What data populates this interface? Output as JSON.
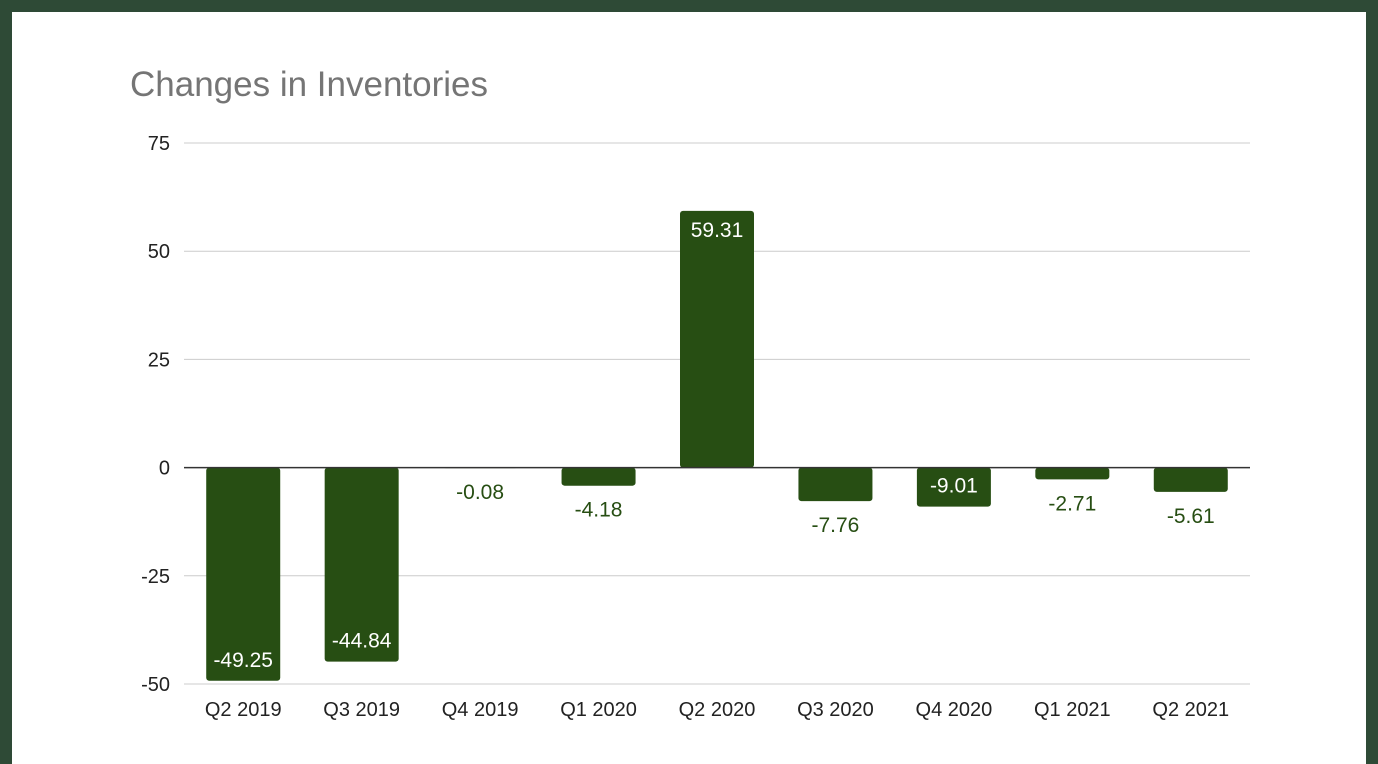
{
  "chart_data": {
    "type": "bar",
    "title": "Changes in Inventories",
    "xlabel": "",
    "ylabel": "",
    "categories": [
      "Q2 2019",
      "Q3 2019",
      "Q4 2019",
      "Q1 2020",
      "Q2 2020",
      "Q3 2020",
      "Q4 2020",
      "Q1 2021",
      "Q2 2021"
    ],
    "values": [
      -49.25,
      -44.84,
      -0.08,
      -4.18,
      59.31,
      -7.76,
      -9.01,
      -2.71,
      -5.61
    ],
    "data_labels": [
      "-49.25",
      "-44.84",
      "-0.08",
      "-4.18",
      "59.31",
      "-7.76",
      "-9.01",
      "-2.71",
      "-5.61"
    ],
    "ylim": [
      -50,
      75
    ],
    "yticks": [
      -50,
      -25,
      0,
      25,
      50,
      75
    ],
    "ytick_labels": [
      "-50",
      "-25",
      "0",
      "25",
      "50",
      "75"
    ],
    "grid": true,
    "legend": "none",
    "colors": {
      "bar": "#274e13",
      "label_inside": "#ffffff",
      "label_outside": "#274e13",
      "grid": "#cccccc",
      "zero_line": "#333333",
      "title": "#757575",
      "frame": "#2e4a36"
    }
  }
}
